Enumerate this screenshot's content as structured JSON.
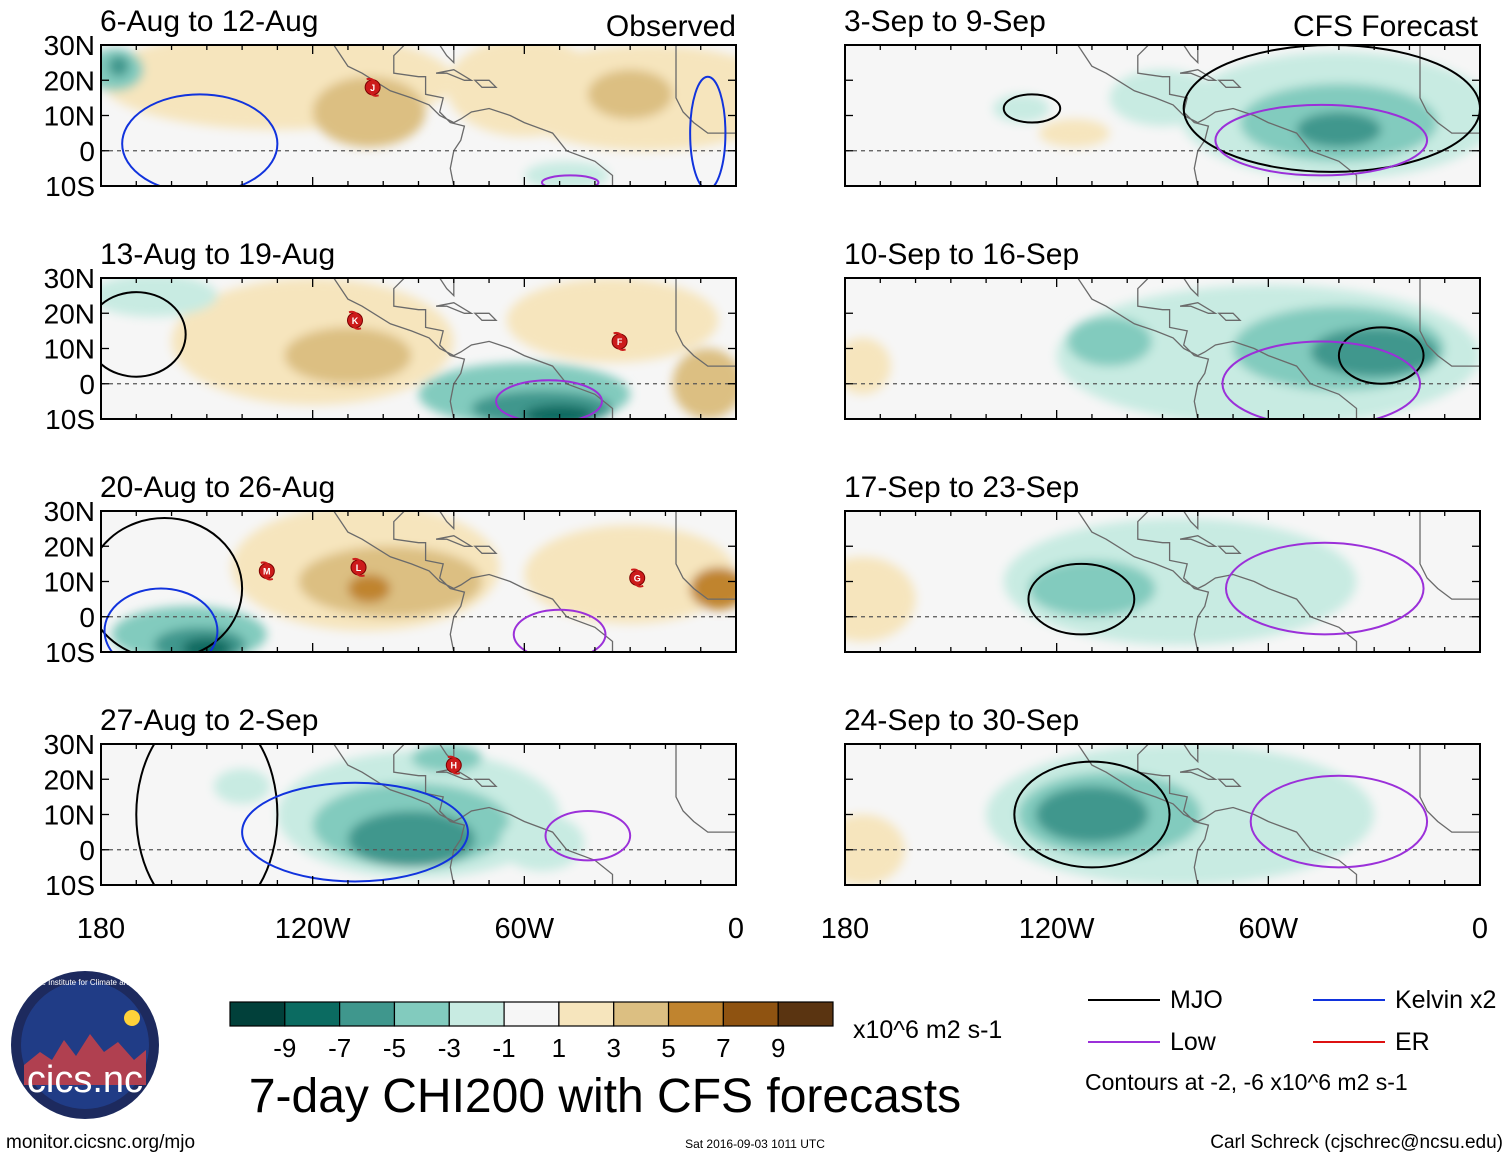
{
  "labels": {
    "observed": "Observed",
    "forecast": "CFS Forecast",
    "title": "7-day CHI200 with CFS forecasts",
    "units": "x10^6 m2 s-1",
    "contour_note": "Contours at -2, -6 x10^6 m2 s-1",
    "site": "monitor.cicsnc.org/mjo",
    "timestamp": "Sat 2016-09-03 1011 UTC",
    "author": "Carl Schreck (cjschrec@ncsu.edu)",
    "logo_text": "cics.nc",
    "logo_ring_text": "Cooperative Institute for Climate and Satellites"
  },
  "axes": {
    "lat_ticks": [
      "30N",
      "20N",
      "10N",
      "0",
      "10S"
    ],
    "lon_ticks": [
      "180",
      "120W",
      "60W",
      "0"
    ]
  },
  "panels": [
    {
      "title": "6-Aug to 12-Aug",
      "storms": [
        {
          "id": "J",
          "lon": -103,
          "lat": 18
        }
      ]
    },
    {
      "title": "13-Aug to 19-Aug",
      "storms": [
        {
          "id": "K",
          "lon": -108,
          "lat": 18
        },
        {
          "id": "F",
          "lon": -33,
          "lat": 12
        }
      ]
    },
    {
      "title": "20-Aug to 26-Aug",
      "storms": [
        {
          "id": "M",
          "lon": -133,
          "lat": 13
        },
        {
          "id": "L",
          "lon": -107,
          "lat": 14
        },
        {
          "id": "G",
          "lon": -28,
          "lat": 11
        }
      ]
    },
    {
      "title": "27-Aug to 2-Sep",
      "storms": [
        {
          "id": "H",
          "lon": -80,
          "lat": 24
        }
      ]
    },
    {
      "title": "3-Sep to 9-Sep",
      "storms": []
    },
    {
      "title": "10-Sep to 16-Sep",
      "storms": []
    },
    {
      "title": "17-Sep to 23-Sep",
      "storms": []
    },
    {
      "title": "24-Sep to 30-Sep",
      "storms": []
    }
  ],
  "colorbar": {
    "labels": [
      "-9",
      "-7",
      "-5",
      "-3",
      "-1",
      "1",
      "3",
      "5",
      "7",
      "9"
    ],
    "colors": [
      "#01403a",
      "#0b6b61",
      "#3f978d",
      "#82cbbe",
      "#c8ebe2",
      "#f6f6f6",
      "#f6e5bd",
      "#dcbf82",
      "#c0842f",
      "#8f5311",
      "#5a3411"
    ]
  },
  "legend": [
    {
      "label": "MJO",
      "color": "#000000"
    },
    {
      "label": "Kelvin x2",
      "color": "#1133dd"
    },
    {
      "label": "Low",
      "color": "#9b30d9"
    },
    {
      "label": "ER",
      "color": "#dd1111"
    }
  ]
}
